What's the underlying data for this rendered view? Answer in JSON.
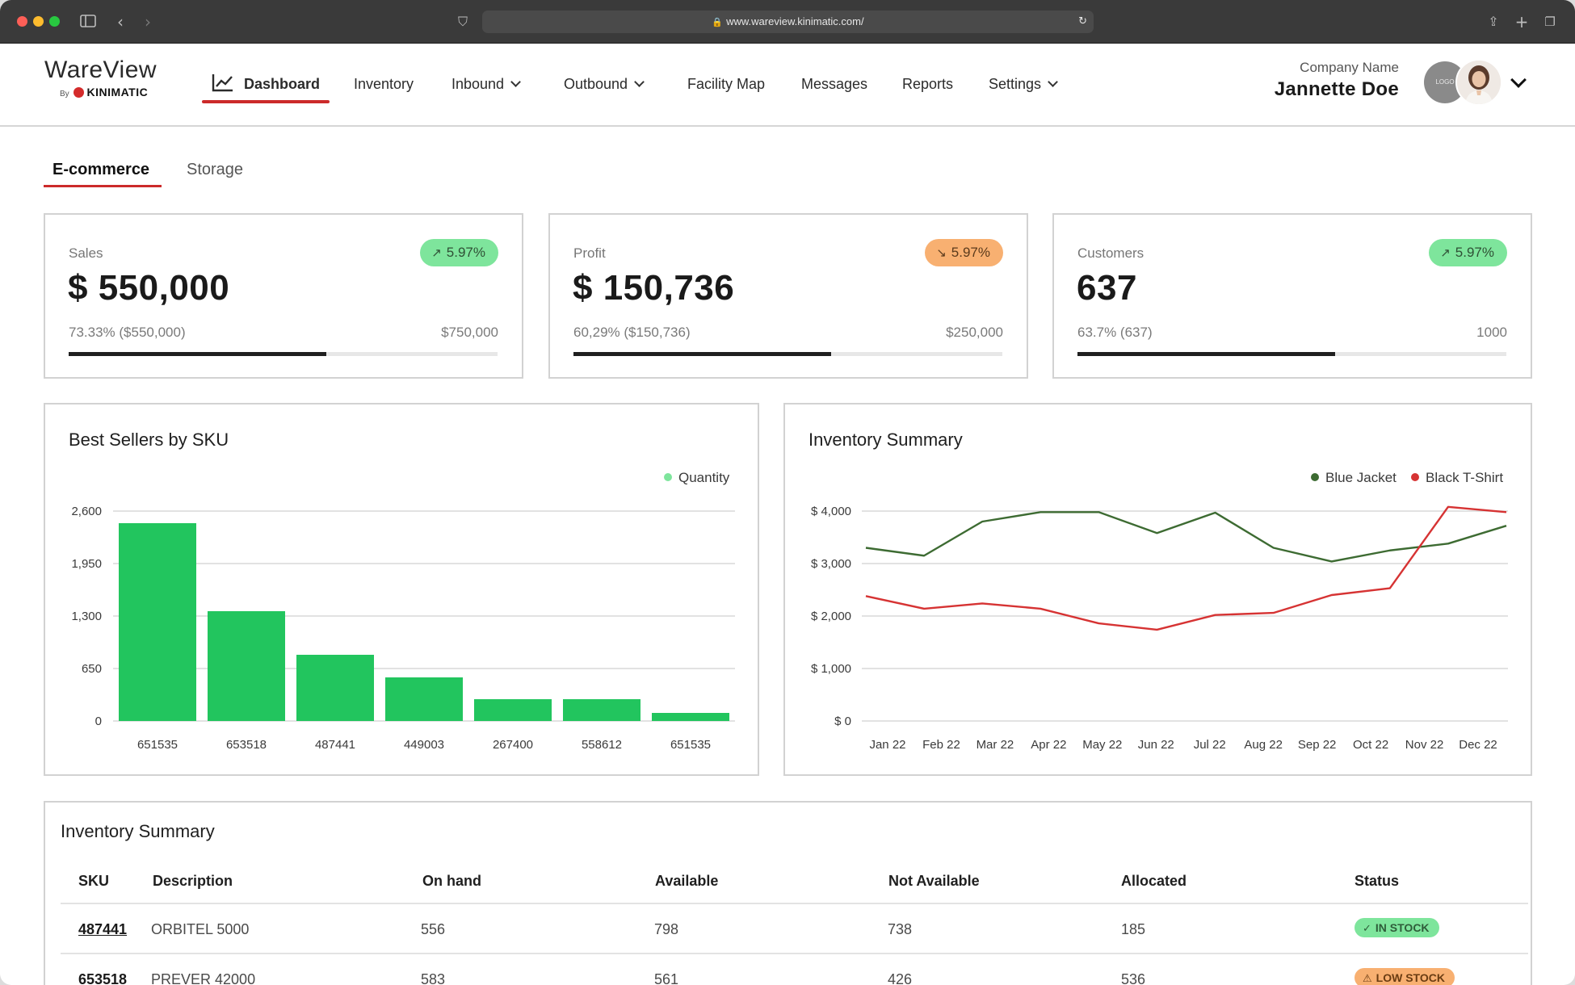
{
  "browser": {
    "url": "www.wareview.kinimatic.com/"
  },
  "brand": {
    "name": "WareView",
    "by": "By",
    "partner": "KINIMATIC"
  },
  "nav": {
    "dashboard": "Dashboard",
    "inventory": "Inventory",
    "inbound": "Inbound",
    "outbound": "Outbound",
    "facility_map": "Facility Map",
    "messages": "Messages",
    "reports": "Reports",
    "settings": "Settings"
  },
  "user": {
    "company": "Company Name",
    "name": "Jannette Doe",
    "logo_text": "LOGO"
  },
  "tabs": {
    "ecommerce": "E-commerce",
    "storage": "Storage"
  },
  "kpis": [
    {
      "label": "Sales",
      "value": "$ 550,000",
      "change": "5.97%",
      "trend": "up",
      "sub_left": "73.33% ($550,000)",
      "sub_right": "$750,000",
      "progress": 0.6
    },
    {
      "label": "Profit",
      "value": "$ 150,736",
      "change": "5.97%",
      "trend": "down",
      "sub_left": "60,29% ($150,736)",
      "sub_right": "$250,000",
      "progress": 0.6
    },
    {
      "label": "Customers",
      "value": "637",
      "change": "5.97%",
      "trend": "up",
      "sub_left": "63.7% (637)",
      "sub_right": "1000",
      "progress": 0.6
    }
  ],
  "chart_data": [
    {
      "type": "bar",
      "title": "Best Sellers by SKU",
      "categories": [
        "651535",
        "653518",
        "487441",
        "449003",
        "267400",
        "558612",
        "651535"
      ],
      "series": [
        {
          "name": "Quantity",
          "values": [
            2450,
            1360,
            820,
            540,
            270,
            270,
            100
          ],
          "color": "#22c55e"
        }
      ],
      "y_ticks": [
        "0",
        "650",
        "1,300",
        "1,950",
        "2,600"
      ],
      "ylim": [
        0,
        2600
      ],
      "grid": true,
      "legend": "top-right"
    },
    {
      "type": "line",
      "title": "Inventory Summary",
      "categories": [
        "Jan 22",
        "Feb 22",
        "Mar 22",
        "Apr 22",
        "May 22",
        "Jun 22",
        "Jul 22",
        "Aug 22",
        "Sep 22",
        "Oct 22",
        "Nov 22",
        "Dec 22"
      ],
      "series": [
        {
          "name": "Blue Jacket",
          "color": "#3d6b32",
          "values": [
            3300,
            3150,
            3800,
            3980,
            3980,
            3580,
            3970,
            3300,
            3040,
            3250,
            3380,
            3720
          ]
        },
        {
          "name": "Black T-Shirt",
          "color": "#d63333",
          "values": [
            2380,
            2140,
            2240,
            2140,
            1860,
            1740,
            2020,
            2060,
            2400,
            2530,
            4080,
            3980
          ]
        }
      ],
      "y_ticks": [
        "$ 0",
        "$ 1,000",
        "$ 2,000",
        "$ 3,000",
        "$ 4,000"
      ],
      "ylim": [
        0,
        4000
      ],
      "grid": true,
      "legend": "top-right"
    }
  ],
  "table": {
    "title": "Inventory Summary",
    "headers": [
      "SKU",
      "Description",
      "On hand",
      "Available",
      "Not Available",
      "Allocated",
      "Status"
    ],
    "rows": [
      {
        "sku": "487441",
        "description": "ORBITEL 5000",
        "on_hand": "556",
        "available": "798",
        "not_available": "738",
        "allocated": "185",
        "status": "IN STOCK",
        "status_kind": "in"
      },
      {
        "sku": "653518",
        "description": "PREVER 42000",
        "on_hand": "583",
        "available": "561",
        "not_available": "426",
        "allocated": "536",
        "status": "LOW STOCK",
        "status_kind": "low"
      }
    ]
  }
}
